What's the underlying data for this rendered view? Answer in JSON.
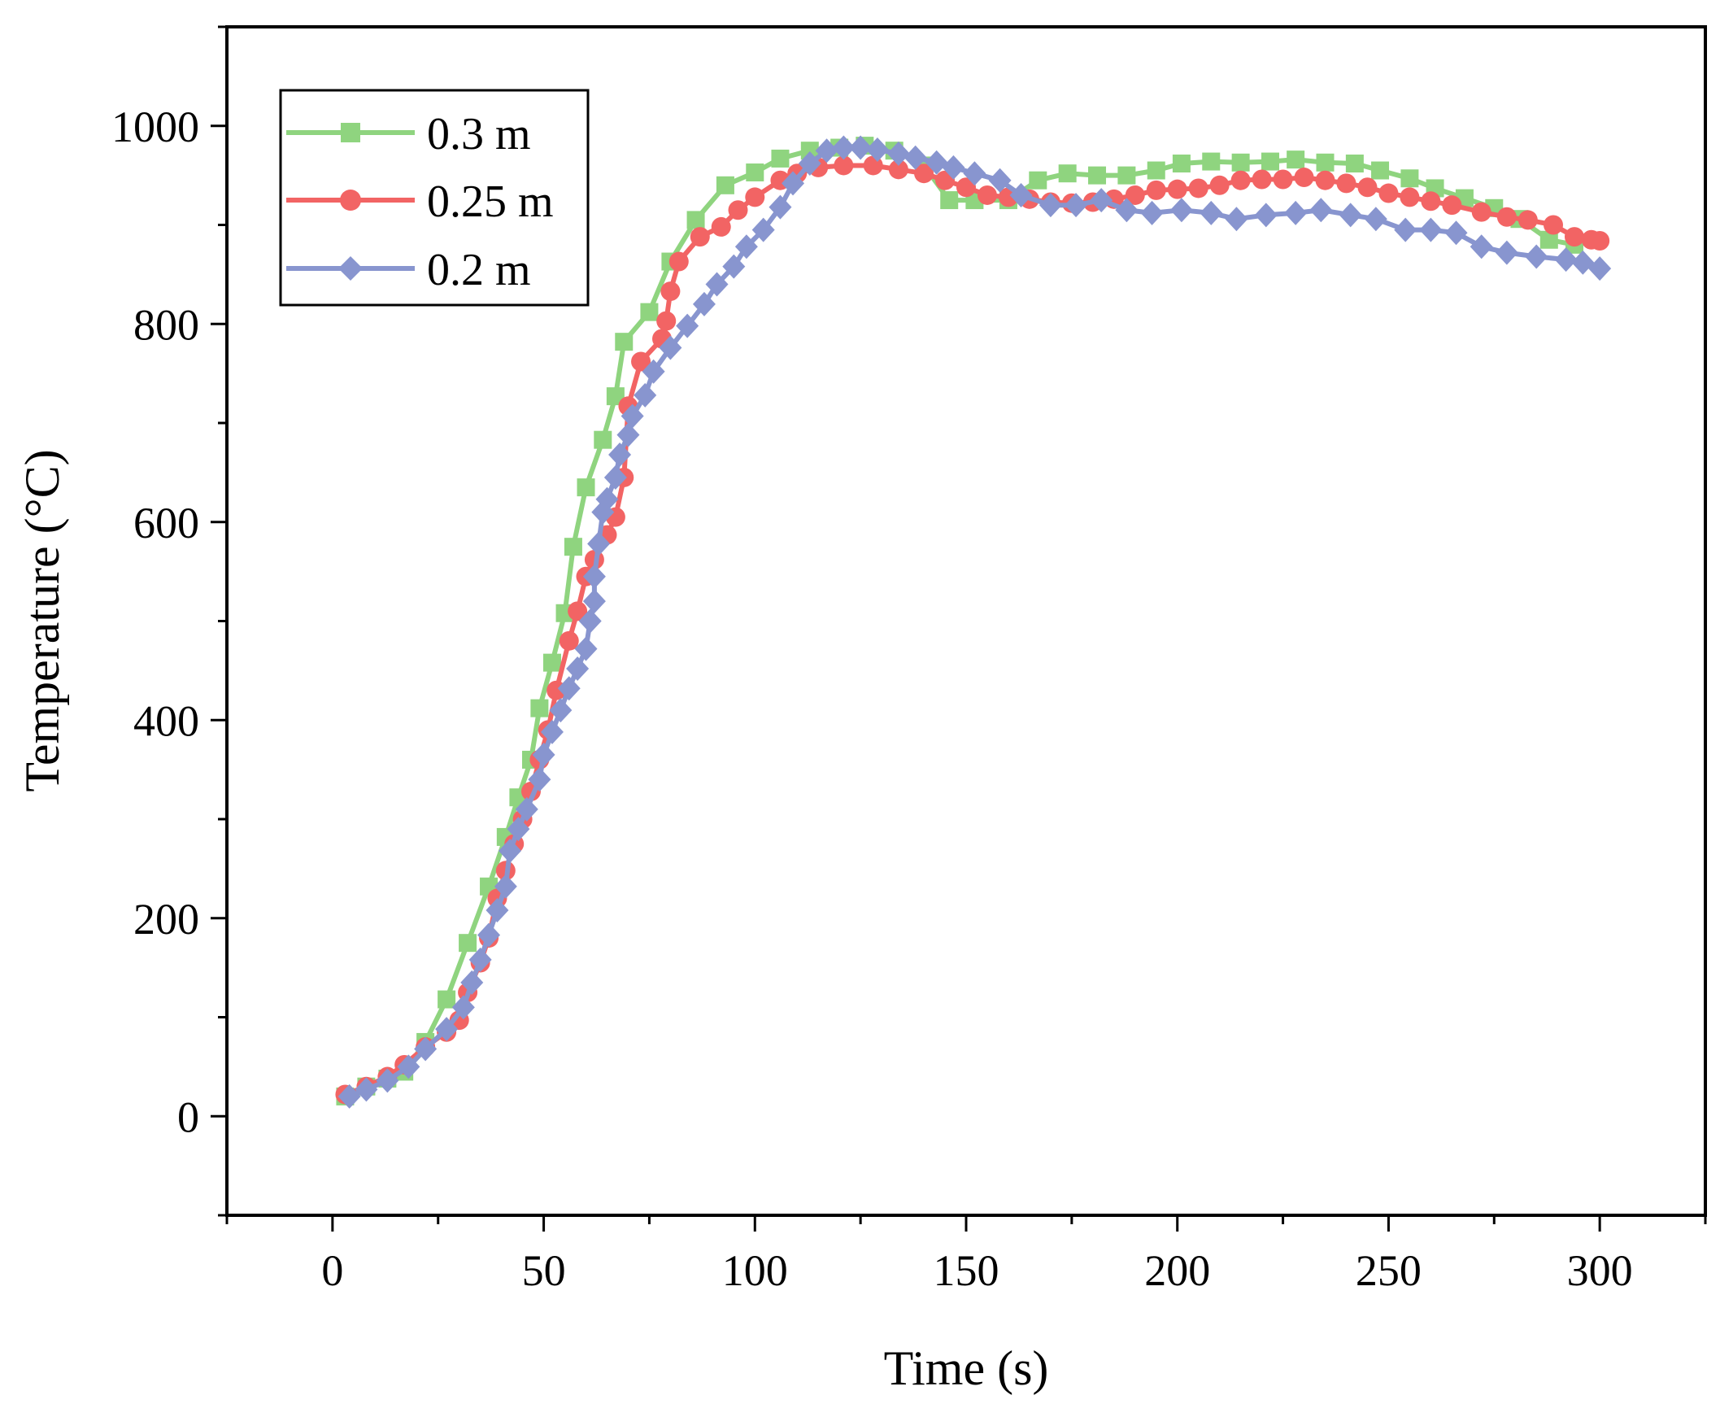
{
  "chart_data": {
    "type": "line",
    "title": "",
    "xlabel": "Time (s)",
    "ylabel": "Temperature (°C)",
    "xlim": [
      -25,
      325
    ],
    "ylim": [
      -100,
      1100
    ],
    "x_ticks": [
      0,
      50,
      100,
      150,
      200,
      250,
      300
    ],
    "x_tick_labels": [
      "0",
      "50",
      "100",
      "150",
      "200",
      "250",
      "300"
    ],
    "y_ticks": [
      0,
      200,
      400,
      600,
      800,
      1000
    ],
    "y_tick_labels": [
      "0",
      "200",
      "400",
      "600",
      "800",
      "1000"
    ],
    "grid": false,
    "legend_position": "top-left",
    "series": [
      {
        "name": "0.3 m",
        "color": "#8fd47f",
        "marker": "square",
        "points": [
          [
            3,
            20
          ],
          [
            8,
            30
          ],
          [
            13,
            38
          ],
          [
            17,
            45
          ],
          [
            22,
            75
          ],
          [
            27,
            118
          ],
          [
            32,
            175
          ],
          [
            37,
            232
          ],
          [
            41,
            282
          ],
          [
            44,
            322
          ],
          [
            47,
            360
          ],
          [
            49,
            412
          ],
          [
            52,
            458
          ],
          [
            55,
            508
          ],
          [
            57,
            575
          ],
          [
            60,
            635
          ],
          [
            64,
            683
          ],
          [
            67,
            727
          ],
          [
            69,
            782
          ],
          [
            75,
            812
          ],
          [
            80,
            863
          ],
          [
            86,
            905
          ],
          [
            93,
            940
          ],
          [
            100,
            953
          ],
          [
            106,
            967
          ],
          [
            113,
            975
          ],
          [
            120,
            978
          ],
          [
            126,
            980
          ],
          [
            133,
            975
          ],
          [
            140,
            960
          ],
          [
            146,
            925
          ],
          [
            152,
            925
          ],
          [
            160,
            925
          ],
          [
            167,
            945
          ],
          [
            174,
            952
          ],
          [
            181,
            950
          ],
          [
            188,
            950
          ],
          [
            195,
            955
          ],
          [
            201,
            962
          ],
          [
            208,
            964
          ],
          [
            215,
            963
          ],
          [
            222,
            964
          ],
          [
            228,
            966
          ],
          [
            235,
            963
          ],
          [
            242,
            962
          ],
          [
            248,
            955
          ],
          [
            255,
            947
          ],
          [
            261,
            937
          ],
          [
            268,
            927
          ],
          [
            275,
            917
          ],
          [
            281,
            906
          ],
          [
            288,
            885
          ],
          [
            294,
            880
          ]
        ]
      },
      {
        "name": "0.25 m",
        "color": "#f26464",
        "marker": "circle",
        "points": [
          [
            3,
            22
          ],
          [
            8,
            30
          ],
          [
            13,
            40
          ],
          [
            17,
            52
          ],
          [
            22,
            70
          ],
          [
            27,
            85
          ],
          [
            30,
            97
          ],
          [
            32,
            125
          ],
          [
            35,
            155
          ],
          [
            37,
            180
          ],
          [
            39,
            220
          ],
          [
            41,
            248
          ],
          [
            43,
            275
          ],
          [
            45,
            300
          ],
          [
            47,
            328
          ],
          [
            49,
            360
          ],
          [
            51,
            390
          ],
          [
            53,
            430
          ],
          [
            56,
            480
          ],
          [
            58,
            510
          ],
          [
            60,
            545
          ],
          [
            62,
            562
          ],
          [
            65,
            587
          ],
          [
            67,
            605
          ],
          [
            69,
            645
          ],
          [
            70,
            717
          ],
          [
            73,
            762
          ],
          [
            78,
            785
          ],
          [
            79,
            803
          ],
          [
            80,
            833
          ],
          [
            82,
            863
          ],
          [
            87,
            888
          ],
          [
            92,
            898
          ],
          [
            96,
            915
          ],
          [
            100,
            928
          ],
          [
            106,
            945
          ],
          [
            110,
            952
          ],
          [
            115,
            958
          ],
          [
            121,
            960
          ],
          [
            128,
            960
          ],
          [
            134,
            956
          ],
          [
            140,
            952
          ],
          [
            145,
            945
          ],
          [
            150,
            938
          ],
          [
            155,
            930
          ],
          [
            160,
            928
          ],
          [
            165,
            926
          ],
          [
            170,
            923
          ],
          [
            175,
            922
          ],
          [
            180,
            923
          ],
          [
            185,
            926
          ],
          [
            190,
            930
          ],
          [
            195,
            935
          ],
          [
            200,
            936
          ],
          [
            205,
            937
          ],
          [
            210,
            940
          ],
          [
            215,
            945
          ],
          [
            220,
            946
          ],
          [
            225,
            946
          ],
          [
            230,
            948
          ],
          [
            235,
            945
          ],
          [
            240,
            942
          ],
          [
            245,
            938
          ],
          [
            250,
            932
          ],
          [
            255,
            928
          ],
          [
            260,
            924
          ],
          [
            265,
            920
          ],
          [
            272,
            913
          ],
          [
            278,
            908
          ],
          [
            283,
            905
          ],
          [
            289,
            900
          ],
          [
            294,
            888
          ],
          [
            298,
            885
          ],
          [
            300,
            884
          ]
        ]
      },
      {
        "name": "0.2 m",
        "color": "#8895cf",
        "marker": "diamond",
        "points": [
          [
            4,
            20
          ],
          [
            8,
            27
          ],
          [
            13,
            36
          ],
          [
            18,
            50
          ],
          [
            22,
            68
          ],
          [
            27,
            88
          ],
          [
            31,
            110
          ],
          [
            33,
            135
          ],
          [
            35,
            158
          ],
          [
            37,
            183
          ],
          [
            39,
            208
          ],
          [
            41,
            232
          ],
          [
            42,
            268
          ],
          [
            44,
            290
          ],
          [
            46,
            310
          ],
          [
            49,
            340
          ],
          [
            50,
            365
          ],
          [
            52,
            388
          ],
          [
            54,
            410
          ],
          [
            56,
            432
          ],
          [
            58,
            452
          ],
          [
            60,
            472
          ],
          [
            61,
            500
          ],
          [
            62,
            520
          ],
          [
            62,
            545
          ],
          [
            63,
            578
          ],
          [
            64,
            610
          ],
          [
            65,
            623
          ],
          [
            67,
            645
          ],
          [
            68,
            668
          ],
          [
            70,
            688
          ],
          [
            71,
            707
          ],
          [
            74,
            728
          ],
          [
            76,
            752
          ],
          [
            80,
            776
          ],
          [
            84,
            798
          ],
          [
            88,
            820
          ],
          [
            91,
            840
          ],
          [
            95,
            858
          ],
          [
            98,
            878
          ],
          [
            102,
            895
          ],
          [
            106,
            918
          ],
          [
            109,
            942
          ],
          [
            113,
            962
          ],
          [
            117,
            975
          ],
          [
            121,
            978
          ],
          [
            125,
            978
          ],
          [
            129,
            976
          ],
          [
            134,
            972
          ],
          [
            138,
            968
          ],
          [
            143,
            963
          ],
          [
            147,
            958
          ],
          [
            152,
            952
          ],
          [
            158,
            945
          ],
          [
            163,
            930
          ],
          [
            170,
            920
          ],
          [
            176,
            920
          ],
          [
            182,
            925
          ],
          [
            188,
            915
          ],
          [
            194,
            912
          ],
          [
            201,
            915
          ],
          [
            208,
            912
          ],
          [
            214,
            906
          ],
          [
            221,
            910
          ],
          [
            228,
            912
          ],
          [
            234,
            915
          ],
          [
            241,
            910
          ],
          [
            247,
            906
          ],
          [
            254,
            895
          ],
          [
            260,
            895
          ],
          [
            266,
            892
          ],
          [
            272,
            878
          ],
          [
            278,
            872
          ],
          [
            285,
            868
          ],
          [
            292,
            865
          ],
          [
            296,
            862
          ],
          [
            300,
            856
          ]
        ]
      }
    ]
  }
}
